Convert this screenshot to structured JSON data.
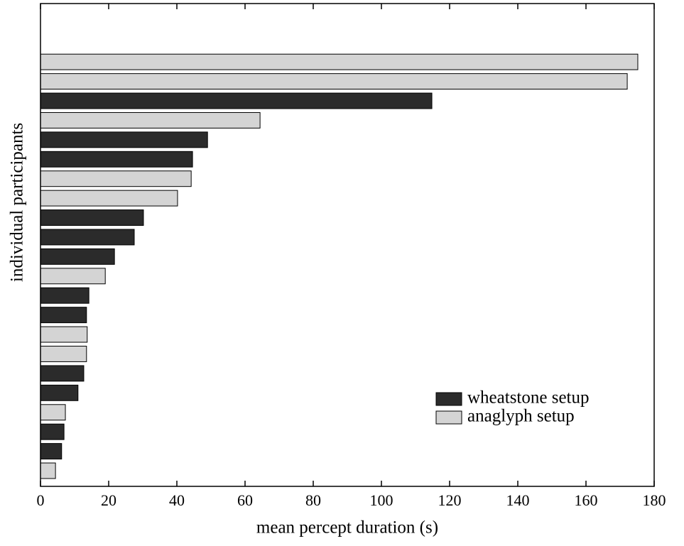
{
  "chart_data": {
    "type": "barh",
    "xlabel": "mean percept duration (s)",
    "ylabel": "individual participants",
    "categories": [
      null,
      null,
      null,
      null,
      null,
      null,
      null,
      null,
      null,
      null,
      null,
      null,
      null,
      null,
      null,
      null,
      null,
      null,
      null,
      null,
      null,
      null
    ],
    "series": [
      {
        "name": "wheatstone setup",
        "color": "#2b2b2b",
        "values": [
          null,
          null,
          114.8,
          null,
          49.0,
          44.6,
          null,
          null,
          30.2,
          27.5,
          21.7,
          null,
          14.2,
          13.5,
          null,
          null,
          12.7,
          11.0,
          null,
          6.9,
          6.2,
          null
        ]
      },
      {
        "name": "anaglyph setup",
        "color": "#d4d4d4",
        "values": [
          175.2,
          172.1,
          null,
          64.4,
          null,
          null,
          44.2,
          40.2,
          null,
          null,
          null,
          19.0,
          null,
          null,
          13.7,
          13.5,
          null,
          null,
          7.3,
          null,
          null,
          4.4
        ]
      }
    ],
    "xlim": [
      0,
      180
    ],
    "xticks": [
      0,
      20,
      40,
      60,
      80,
      100,
      120,
      140,
      160,
      180
    ],
    "legend": "lower right"
  }
}
